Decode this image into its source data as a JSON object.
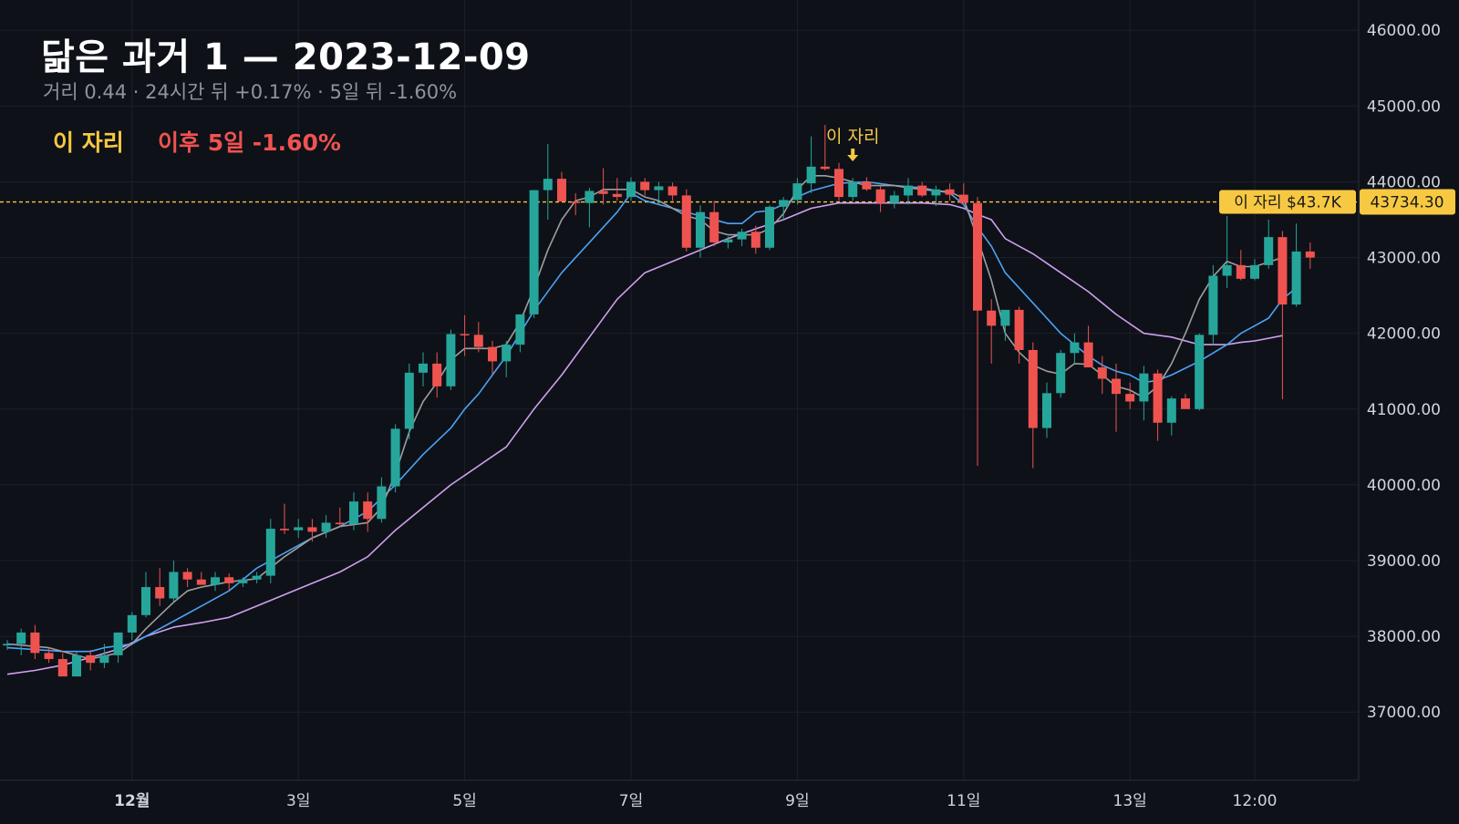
{
  "header": {
    "title": "닮은 과거 1 — 2023-12-09",
    "subtitle": "거리 0.44 · 24시간 뒤 +0.17% · 5일 뒤 -1.60%",
    "here_label": "이 자리",
    "after_label": "이후 5일 -1.60%"
  },
  "colors": {
    "background": "#0e1118",
    "up": "#26a69a",
    "down": "#ef5350",
    "ma_gray": "#9e9e9e",
    "ma_blue": "#4aa3f5",
    "ma_purple": "#cfa0ee",
    "highlight": "#f7c942"
  },
  "chart_data": {
    "type": "candlestick",
    "interval_hours": 4,
    "x_start": "2023-11-30T12:00",
    "x_ticks": [
      {
        "index": 9,
        "label": "12월"
      },
      {
        "index": 21,
        "label": "3일"
      },
      {
        "index": 33,
        "label": "5일"
      },
      {
        "index": 45,
        "label": "7일"
      },
      {
        "index": 57,
        "label": "9일"
      },
      {
        "index": 69,
        "label": "11일"
      },
      {
        "index": 81,
        "label": "13일"
      },
      {
        "index": 90,
        "label": "12:00"
      }
    ],
    "y_ticks": [
      46000,
      45000,
      44000,
      43000,
      42000,
      41000,
      40000,
      39000,
      38000,
      37000
    ],
    "ylim": [
      36100,
      46400
    ],
    "marker": {
      "index": 61,
      "label": "이 자리",
      "price": 43734.3,
      "price_label": "43734.30",
      "tag": "이 자리 $43.7K"
    },
    "candles": [
      [
        37880,
        37950,
        37820,
        37900
      ],
      [
        37900,
        38100,
        37750,
        38050
      ],
      [
        38050,
        38150,
        37700,
        37780
      ],
      [
        37780,
        37850,
        37650,
        37700
      ],
      [
        37700,
        37780,
        37480,
        37470
      ],
      [
        37470,
        37800,
        37500,
        37750
      ],
      [
        37750,
        37820,
        37550,
        37650
      ],
      [
        37650,
        37900,
        37580,
        37750
      ],
      [
        37750,
        38050,
        37650,
        38050
      ],
      [
        38050,
        38320,
        37950,
        38280
      ],
      [
        38280,
        38850,
        38250,
        38650
      ],
      [
        38650,
        38900,
        38400,
        38500
      ],
      [
        38500,
        39000,
        38450,
        38850
      ],
      [
        38850,
        38900,
        38650,
        38750
      ],
      [
        38750,
        38850,
        38680,
        38680
      ],
      [
        38680,
        38850,
        38600,
        38780
      ],
      [
        38780,
        38830,
        38600,
        38700
      ],
      [
        38700,
        38780,
        38650,
        38750
      ],
      [
        38750,
        38850,
        38700,
        38800
      ],
      [
        38800,
        39550,
        38700,
        39420
      ],
      [
        39420,
        39750,
        39350,
        39400
      ],
      [
        39400,
        39550,
        39300,
        39440
      ],
      [
        39440,
        39550,
        39250,
        39380
      ],
      [
        39380,
        39600,
        39300,
        39500
      ],
      [
        39500,
        39700,
        39450,
        39480
      ],
      [
        39480,
        39900,
        39400,
        39780
      ],
      [
        39780,
        39900,
        39380,
        39550
      ],
      [
        39550,
        40100,
        39500,
        39980
      ],
      [
        39980,
        40800,
        39900,
        40740
      ],
      [
        40740,
        41600,
        40600,
        41480
      ],
      [
        41480,
        41750,
        41300,
        41600
      ],
      [
        41600,
        41750,
        41150,
        41300
      ],
      [
        41300,
        42050,
        41250,
        41990
      ],
      [
        41990,
        42240,
        41700,
        41980
      ],
      [
        41980,
        42150,
        41750,
        41820
      ],
      [
        41820,
        41900,
        41450,
        41630
      ],
      [
        41630,
        41900,
        41420,
        41850
      ],
      [
        41850,
        42250,
        41750,
        42250
      ],
      [
        42250,
        43890,
        42200,
        43890
      ],
      [
        43890,
        44500,
        43500,
        44040
      ],
      [
        44040,
        44130,
        43750,
        43740
      ],
      [
        43740,
        43850,
        43560,
        43720
      ],
      [
        43720,
        43920,
        43400,
        43880
      ],
      [
        43880,
        44180,
        43700,
        43840
      ],
      [
        43840,
        44050,
        43750,
        43800
      ],
      [
        43800,
        44060,
        43750,
        44000
      ],
      [
        44000,
        44050,
        43820,
        43890
      ],
      [
        43890,
        44000,
        43700,
        43940
      ],
      [
        43940,
        43990,
        43750,
        43820
      ],
      [
        43820,
        43900,
        43080,
        43130
      ],
      [
        43130,
        43690,
        43000,
        43600
      ],
      [
        43600,
        43750,
        43150,
        43200
      ],
      [
        43200,
        43280,
        43120,
        43240
      ],
      [
        43240,
        43380,
        43150,
        43340
      ],
      [
        43340,
        43420,
        43050,
        43130
      ],
      [
        43130,
        43690,
        43100,
        43670
      ],
      [
        43670,
        43800,
        43500,
        43760
      ],
      [
        43760,
        44050,
        43700,
        43980
      ],
      [
        43980,
        44600,
        43850,
        44200
      ],
      [
        44200,
        44750,
        44150,
        44170
      ],
      [
        44170,
        44250,
        43750,
        43800
      ],
      [
        43800,
        44050,
        43750,
        44000
      ],
      [
        44000,
        44060,
        43880,
        43900
      ],
      [
        43900,
        43950,
        43600,
        43720
      ],
      [
        43720,
        43880,
        43650,
        43820
      ],
      [
        43820,
        44050,
        43700,
        43950
      ],
      [
        43950,
        44000,
        43800,
        43820
      ],
      [
        43820,
        43950,
        43680,
        43900
      ],
      [
        43900,
        43980,
        43750,
        43830
      ],
      [
        43830,
        43980,
        43750,
        43720
      ],
      [
        43720,
        43800,
        40250,
        42300
      ],
      [
        42300,
        42450,
        41600,
        42100
      ],
      [
        42100,
        42300,
        41900,
        42310
      ],
      [
        42310,
        42350,
        41600,
        41780
      ],
      [
        41780,
        41880,
        40220,
        40750
      ],
      [
        40750,
        41350,
        40620,
        41210
      ],
      [
        41210,
        41780,
        41150,
        41740
      ],
      [
        41740,
        42000,
        41600,
        41880
      ],
      [
        41880,
        42100,
        41550,
        41550
      ],
      [
        41550,
        41700,
        41200,
        41400
      ],
      [
        41400,
        41600,
        40700,
        41200
      ],
      [
        41200,
        41350,
        41000,
        41100
      ],
      [
        41100,
        41570,
        40850,
        41470
      ],
      [
        41470,
        41520,
        40580,
        40820
      ],
      [
        40820,
        41170,
        40650,
        41140
      ],
      [
        41140,
        41200,
        41000,
        41000
      ],
      [
        41000,
        42000,
        40980,
        41980
      ],
      [
        41980,
        42900,
        41850,
        42760
      ],
      [
        42760,
        43550,
        42600,
        42900
      ],
      [
        42900,
        43100,
        42700,
        42720
      ],
      [
        42720,
        42980,
        42700,
        42900
      ],
      [
        42900,
        43500,
        42850,
        43270
      ],
      [
        43270,
        43350,
        41130,
        42380
      ],
      [
        42380,
        43450,
        42350,
        43080
      ],
      [
        43080,
        43200,
        42850,
        43000
      ]
    ],
    "ma_short": [
      [
        0,
        37900
      ],
      [
        3,
        37850
      ],
      [
        6,
        37700
      ],
      [
        8,
        37780
      ],
      [
        9,
        37900
      ],
      [
        10,
        38100
      ],
      [
        12,
        38450
      ],
      [
        13,
        38600
      ],
      [
        14,
        38650
      ],
      [
        16,
        38720
      ],
      [
        18,
        38760
      ],
      [
        20,
        39050
      ],
      [
        22,
        39300
      ],
      [
        24,
        39450
      ],
      [
        26,
        39500
      ],
      [
        27,
        39700
      ],
      [
        28,
        40150
      ],
      [
        29,
        40700
      ],
      [
        30,
        41100
      ],
      [
        31,
        41350
      ],
      [
        32,
        41650
      ],
      [
        33,
        41800
      ],
      [
        35,
        41800
      ],
      [
        36,
        41850
      ],
      [
        37,
        42150
      ],
      [
        38,
        42600
      ],
      [
        39,
        43100
      ],
      [
        40,
        43500
      ],
      [
        41,
        43750
      ],
      [
        42,
        43800
      ],
      [
        43,
        43900
      ],
      [
        45,
        43900
      ],
      [
        46,
        43800
      ],
      [
        47,
        43750
      ],
      [
        48,
        43650
      ],
      [
        49,
        43550
      ],
      [
        50,
        43500
      ],
      [
        51,
        43350
      ],
      [
        52,
        43300
      ],
      [
        53,
        43300
      ],
      [
        54,
        43300
      ],
      [
        55,
        43380
      ],
      [
        56,
        43580
      ],
      [
        57,
        43900
      ],
      [
        58,
        44080
      ],
      [
        59,
        44080
      ],
      [
        60,
        44050
      ],
      [
        61,
        44000
      ],
      [
        62,
        43950
      ],
      [
        64,
        43950
      ],
      [
        65,
        43920
      ],
      [
        66,
        43900
      ],
      [
        67,
        43880
      ],
      [
        68,
        43870
      ],
      [
        69,
        43780
      ],
      [
        70,
        43250
      ],
      [
        71,
        42700
      ],
      [
        72,
        42000
      ],
      [
        73,
        41750
      ],
      [
        74,
        41580
      ],
      [
        75,
        41500
      ],
      [
        76,
        41460
      ],
      [
        77,
        41600
      ],
      [
        78,
        41590
      ],
      [
        79,
        41450
      ],
      [
        80,
        41300
      ],
      [
        81,
        41250
      ],
      [
        82,
        41150
      ],
      [
        83,
        41300
      ],
      [
        84,
        41600
      ],
      [
        85,
        42000
      ],
      [
        86,
        42450
      ],
      [
        87,
        42750
      ],
      [
        88,
        42950
      ],
      [
        89,
        42880
      ],
      [
        90,
        42880
      ],
      [
        91,
        42940
      ],
      [
        92,
        43000
      ]
    ],
    "ma_mid": [
      [
        0,
        37850
      ],
      [
        4,
        37800
      ],
      [
        6,
        37800
      ],
      [
        7,
        37850
      ],
      [
        9,
        37900
      ],
      [
        10,
        38000
      ],
      [
        12,
        38200
      ],
      [
        14,
        38400
      ],
      [
        16,
        38600
      ],
      [
        18,
        38900
      ],
      [
        20,
        39100
      ],
      [
        22,
        39300
      ],
      [
        24,
        39450
      ],
      [
        26,
        39650
      ],
      [
        28,
        40000
      ],
      [
        30,
        40400
      ],
      [
        32,
        40750
      ],
      [
        33,
        41000
      ],
      [
        34,
        41200
      ],
      [
        35,
        41450
      ],
      [
        36,
        41700
      ],
      [
        37,
        42000
      ],
      [
        38,
        42300
      ],
      [
        40,
        42800
      ],
      [
        42,
        43200
      ],
      [
        44,
        43600
      ],
      [
        45,
        43850
      ],
      [
        46,
        43750
      ],
      [
        48,
        43650
      ],
      [
        50,
        43550
      ],
      [
        52,
        43450
      ],
      [
        53,
        43450
      ],
      [
        54,
        43600
      ],
      [
        55,
        43620
      ],
      [
        56,
        43700
      ],
      [
        57,
        43800
      ],
      [
        58,
        43880
      ],
      [
        60,
        43980
      ],
      [
        62,
        44000
      ],
      [
        64,
        43950
      ],
      [
        66,
        43920
      ],
      [
        68,
        43850
      ],
      [
        69,
        43700
      ],
      [
        70,
        43400
      ],
      [
        71,
        43150
      ],
      [
        72,
        42800
      ],
      [
        74,
        42400
      ],
      [
        76,
        42000
      ],
      [
        78,
        41700
      ],
      [
        79,
        41580
      ],
      [
        80,
        41500
      ],
      [
        81,
        41450
      ],
      [
        82,
        41350
      ],
      [
        83,
        41380
      ],
      [
        84,
        41450
      ],
      [
        86,
        41630
      ],
      [
        88,
        41850
      ],
      [
        89,
        42000
      ],
      [
        90,
        42100
      ],
      [
        91,
        42200
      ],
      [
        92,
        42450
      ],
      [
        93,
        42600
      ]
    ],
    "ma_long": [
      [
        0,
        37500
      ],
      [
        2,
        37550
      ],
      [
        4,
        37620
      ],
      [
        6,
        37720
      ],
      [
        8,
        37830
      ],
      [
        10,
        38000
      ],
      [
        12,
        38120
      ],
      [
        14,
        38180
      ],
      [
        16,
        38250
      ],
      [
        18,
        38400
      ],
      [
        20,
        38550
      ],
      [
        22,
        38700
      ],
      [
        24,
        38850
      ],
      [
        26,
        39050
      ],
      [
        28,
        39400
      ],
      [
        30,
        39700
      ],
      [
        32,
        40000
      ],
      [
        34,
        40250
      ],
      [
        36,
        40500
      ],
      [
        38,
        41000
      ],
      [
        40,
        41450
      ],
      [
        42,
        41950
      ],
      [
        44,
        42450
      ],
      [
        46,
        42800
      ],
      [
        48,
        42950
      ],
      [
        50,
        43100
      ],
      [
        52,
        43250
      ],
      [
        54,
        43380
      ],
      [
        56,
        43500
      ],
      [
        58,
        43650
      ],
      [
        60,
        43720
      ],
      [
        62,
        43720
      ],
      [
        64,
        43720
      ],
      [
        66,
        43720
      ],
      [
        68,
        43700
      ],
      [
        69,
        43650
      ],
      [
        70,
        43570
      ],
      [
        71,
        43500
      ],
      [
        72,
        43250
      ],
      [
        74,
        43050
      ],
      [
        76,
        42800
      ],
      [
        78,
        42550
      ],
      [
        80,
        42250
      ],
      [
        82,
        42000
      ],
      [
        84,
        41950
      ],
      [
        86,
        41850
      ],
      [
        88,
        41850
      ],
      [
        89,
        41880
      ],
      [
        90,
        41900
      ],
      [
        92,
        41970
      ]
    ]
  }
}
